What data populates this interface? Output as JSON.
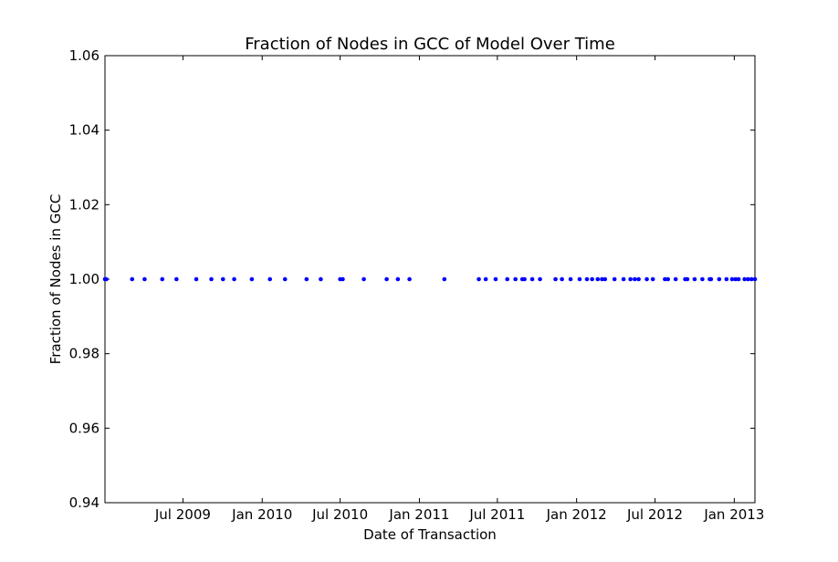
{
  "chart_data": {
    "type": "scatter",
    "title": "Fraction of Nodes in GCC of Model Over Time",
    "xlabel": "Date of Transaction",
    "ylabel": "Fraction of Nodes in GCC",
    "xlim": [
      "2009-01-01",
      "2013-02-18"
    ],
    "ylim": [
      0.94,
      1.06
    ],
    "y_ticks": [
      "0.94",
      "0.96",
      "0.98",
      "1.00",
      "1.02",
      "1.04",
      "1.06"
    ],
    "x_ticks": [
      {
        "date": "2009-07-01",
        "label": "Jul 2009"
      },
      {
        "date": "2010-01-01",
        "label": "Jan 2010"
      },
      {
        "date": "2010-07-01",
        "label": "Jul 2010"
      },
      {
        "date": "2011-01-01",
        "label": "Jan 2011"
      },
      {
        "date": "2011-07-01",
        "label": "Jul 2011"
      },
      {
        "date": "2012-01-01",
        "label": "Jan 2012"
      },
      {
        "date": "2012-07-01",
        "label": "Jul 2012"
      },
      {
        "date": "2013-01-01",
        "label": "Jan 2013"
      }
    ],
    "grid": false,
    "marker_color": "#0000ff",
    "series": [
      {
        "x": [
          "2009-01-01",
          "2009-01-04",
          "2009-03-05",
          "2009-04-03",
          "2009-05-14",
          "2009-06-16",
          "2009-08-01",
          "2009-09-05",
          "2009-10-02",
          "2009-10-28",
          "2009-12-08",
          "2010-01-19",
          "2010-02-23",
          "2010-04-14",
          "2010-05-17",
          "2010-07-01",
          "2010-07-07",
          "2010-08-25",
          "2010-10-17",
          "2010-11-12",
          "2010-12-09",
          "2011-02-28",
          "2011-05-19",
          "2011-06-04",
          "2011-06-27",
          "2011-07-24",
          "2011-08-12",
          "2011-08-28",
          "2011-09-02",
          "2011-09-20",
          "2011-10-08",
          "2011-11-13",
          "2011-11-28",
          "2011-12-18",
          "2012-01-08",
          "2012-01-25",
          "2012-02-06",
          "2012-02-19",
          "2012-02-29",
          "2012-03-07",
          "2012-03-29",
          "2012-04-19",
          "2012-05-05",
          "2012-05-15",
          "2012-05-24",
          "2012-06-12",
          "2012-06-26",
          "2012-07-24",
          "2012-07-31",
          "2012-08-18",
          "2012-09-09",
          "2012-09-14",
          "2012-10-01",
          "2012-10-19",
          "2012-11-05",
          "2012-11-08",
          "2012-11-27",
          "2012-12-14",
          "2012-12-27",
          "2013-01-04",
          "2013-01-11",
          "2013-01-25",
          "2013-02-02",
          "2013-02-10",
          "2013-02-18"
        ],
        "y": [
          1.0,
          1.0,
          1.0,
          1.0,
          1.0,
          1.0,
          1.0,
          1.0,
          1.0,
          1.0,
          1.0,
          1.0,
          1.0,
          1.0,
          1.0,
          1.0,
          1.0,
          1.0,
          1.0,
          1.0,
          1.0,
          1.0,
          1.0,
          1.0,
          1.0,
          1.0,
          1.0,
          1.0,
          1.0,
          1.0,
          1.0,
          1.0,
          1.0,
          1.0,
          1.0,
          1.0,
          1.0,
          1.0,
          1.0,
          1.0,
          1.0,
          1.0,
          1.0,
          1.0,
          1.0,
          1.0,
          1.0,
          1.0,
          1.0,
          1.0,
          1.0,
          1.0,
          1.0,
          1.0,
          1.0,
          1.0,
          1.0,
          1.0,
          1.0,
          1.0,
          1.0,
          1.0,
          1.0,
          1.0,
          1.0
        ]
      }
    ]
  }
}
